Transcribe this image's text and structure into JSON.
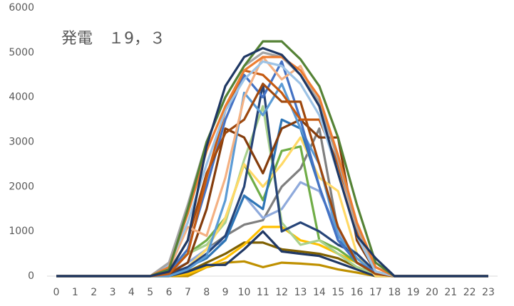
{
  "chart_data": {
    "type": "line",
    "title": "発電　１9，３",
    "categories": [
      "0",
      "1",
      "2",
      "3",
      "4",
      "5",
      "6",
      "7",
      "8",
      "9",
      "10",
      "11",
      "12",
      "13",
      "14",
      "15",
      "16",
      "17",
      "18",
      "19",
      "20",
      "21",
      "22",
      "23"
    ],
    "ylim": [
      0,
      6000
    ],
    "yticks": [
      0,
      1000,
      2000,
      3000,
      4000,
      5000,
      6000
    ],
    "grid": false,
    "series": [
      {
        "color": "#bf9000",
        "values": [
          0,
          0,
          0,
          0,
          0,
          0,
          0,
          0,
          200,
          300,
          330,
          200,
          300,
          280,
          250,
          150,
          80,
          0,
          0,
          0,
          0,
          0,
          0,
          0
        ]
      },
      {
        "color": "#7f6000",
        "values": [
          0,
          0,
          0,
          0,
          0,
          0,
          0,
          100,
          300,
          500,
          750,
          750,
          600,
          550,
          500,
          400,
          200,
          50,
          0,
          0,
          0,
          0,
          0,
          0
        ]
      },
      {
        "color": "#ffc000",
        "values": [
          0,
          0,
          0,
          0,
          0,
          0,
          0,
          50,
          200,
          400,
          700,
          1100,
          1100,
          800,
          700,
          500,
          300,
          50,
          0,
          0,
          0,
          0,
          0,
          0
        ]
      },
      {
        "color": "#203864",
        "values": [
          0,
          0,
          0,
          0,
          0,
          0,
          0,
          100,
          250,
          250,
          600,
          1000,
          550,
          500,
          450,
          300,
          150,
          0,
          0,
          0,
          0,
          0,
          0,
          0
        ]
      },
      {
        "color": "#7f7f7f",
        "values": [
          0,
          0,
          0,
          0,
          0,
          0,
          50,
          200,
          600,
          900,
          1150,
          1250,
          2000,
          2400,
          3300,
          1000,
          300,
          50,
          0,
          0,
          0,
          0,
          0,
          0
        ]
      },
      {
        "color": "#8faadc",
        "values": [
          0,
          0,
          0,
          0,
          0,
          0,
          100,
          300,
          600,
          800,
          1800,
          1300,
          1500,
          2100,
          1900,
          1000,
          400,
          100,
          0,
          0,
          0,
          0,
          0,
          0
        ]
      },
      {
        "color": "#70ad47",
        "values": [
          0,
          0,
          0,
          0,
          0,
          0,
          200,
          500,
          800,
          1300,
          2500,
          1700,
          2800,
          2900,
          800,
          600,
          300,
          50,
          0,
          0,
          0,
          0,
          0,
          0
        ]
      },
      {
        "color": "#a9d18e",
        "values": [
          0,
          0,
          0,
          0,
          0,
          0,
          100,
          500,
          700,
          1200,
          2600,
          3800,
          1200,
          700,
          800,
          500,
          200,
          50,
          0,
          0,
          0,
          0,
          0,
          0
        ]
      },
      {
        "color": "#ffd966",
        "values": [
          0,
          0,
          0,
          0,
          0,
          0,
          0,
          200,
          600,
          1300,
          2500,
          2000,
          2500,
          3100,
          2200,
          1900,
          500,
          0,
          0,
          0,
          0,
          0,
          0,
          0
        ]
      },
      {
        "color": "#2e75b6",
        "values": [
          0,
          0,
          0,
          0,
          0,
          0,
          30,
          200,
          400,
          800,
          1800,
          1500,
          3500,
          3300,
          2000,
          800,
          500,
          100,
          0,
          0,
          0,
          0,
          0,
          0
        ]
      },
      {
        "color": "#264478",
        "values": [
          0,
          0,
          0,
          0,
          0,
          0,
          50,
          200,
          500,
          900,
          2000,
          4300,
          1000,
          1200,
          1000,
          700,
          500,
          100,
          0,
          0,
          0,
          0,
          0,
          0
        ]
      },
      {
        "color": "#843c0c",
        "values": [
          0,
          0,
          0,
          0,
          0,
          0,
          50,
          300,
          1500,
          3300,
          3100,
          2300,
          3300,
          3500,
          3100,
          3100,
          800,
          100,
          0,
          0,
          0,
          0,
          0,
          0
        ]
      },
      {
        "color": "#5b9bd5",
        "values": [
          0,
          0,
          0,
          0,
          0,
          0,
          0,
          150,
          450,
          1700,
          4100,
          3600,
          4300,
          3300,
          2500,
          900,
          400,
          50,
          0,
          0,
          0,
          0,
          0,
          0
        ]
      },
      {
        "color": "#4472c4",
        "values": [
          0,
          0,
          0,
          0,
          0,
          0,
          100,
          600,
          2000,
          3500,
          4500,
          4000,
          4800,
          3500,
          2000,
          800,
          300,
          100,
          0,
          0,
          0,
          0,
          0,
          0
        ]
      },
      {
        "color": "#9e480e",
        "values": [
          0,
          0,
          0,
          0,
          0,
          0,
          100,
          800,
          2300,
          3200,
          3500,
          4300,
          3900,
          3900,
          2500,
          1100,
          300,
          50,
          0,
          0,
          0,
          0,
          0,
          0
        ]
      },
      {
        "color": "#c55a11",
        "values": [
          0,
          0,
          0,
          0,
          0,
          0,
          50,
          500,
          2200,
          3700,
          4600,
          4500,
          4100,
          3500,
          3500,
          2500,
          1000,
          200,
          0,
          0,
          0,
          0,
          0,
          0
        ]
      },
      {
        "color": "#f4b183",
        "values": [
          0,
          0,
          0,
          0,
          0,
          0,
          150,
          1100,
          900,
          2200,
          4000,
          4900,
          4400,
          4700,
          3800,
          2300,
          1100,
          100,
          0,
          0,
          0,
          0,
          0,
          0
        ]
      },
      {
        "color": "#9dc3e6",
        "values": [
          0,
          0,
          0,
          0,
          0,
          0,
          250,
          1200,
          2500,
          3700,
          4400,
          4800,
          4700,
          4300,
          3600,
          2300,
          900,
          100,
          0,
          0,
          0,
          0,
          0,
          0
        ]
      },
      {
        "color": "#a5a5a5",
        "values": [
          0,
          0,
          0,
          0,
          0,
          0,
          300,
          1600,
          3000,
          4000,
          4700,
          5000,
          4900,
          4500,
          3900,
          2600,
          1100,
          200,
          0,
          0,
          0,
          0,
          0,
          0
        ]
      },
      {
        "color": "#ed7d31",
        "values": [
          0,
          0,
          0,
          0,
          0,
          0,
          200,
          1400,
          2800,
          3800,
          4600,
          4900,
          4900,
          4600,
          4000,
          2700,
          1200,
          200,
          0,
          0,
          0,
          0,
          0,
          0
        ]
      },
      {
        "color": "#548235",
        "values": [
          0,
          0,
          0,
          0,
          0,
          0,
          150,
          1500,
          3000,
          4000,
          4700,
          5250,
          5250,
          4850,
          4250,
          3100,
          1600,
          300,
          0,
          0,
          0,
          0,
          0,
          0
        ]
      },
      {
        "color": "#1f3864",
        "values": [
          0,
          0,
          0,
          0,
          0,
          0,
          100,
          800,
          2900,
          4250,
          4900,
          5100,
          4950,
          4500,
          3800,
          2300,
          900,
          400,
          0,
          0,
          0,
          0,
          0,
          0
        ]
      }
    ]
  }
}
